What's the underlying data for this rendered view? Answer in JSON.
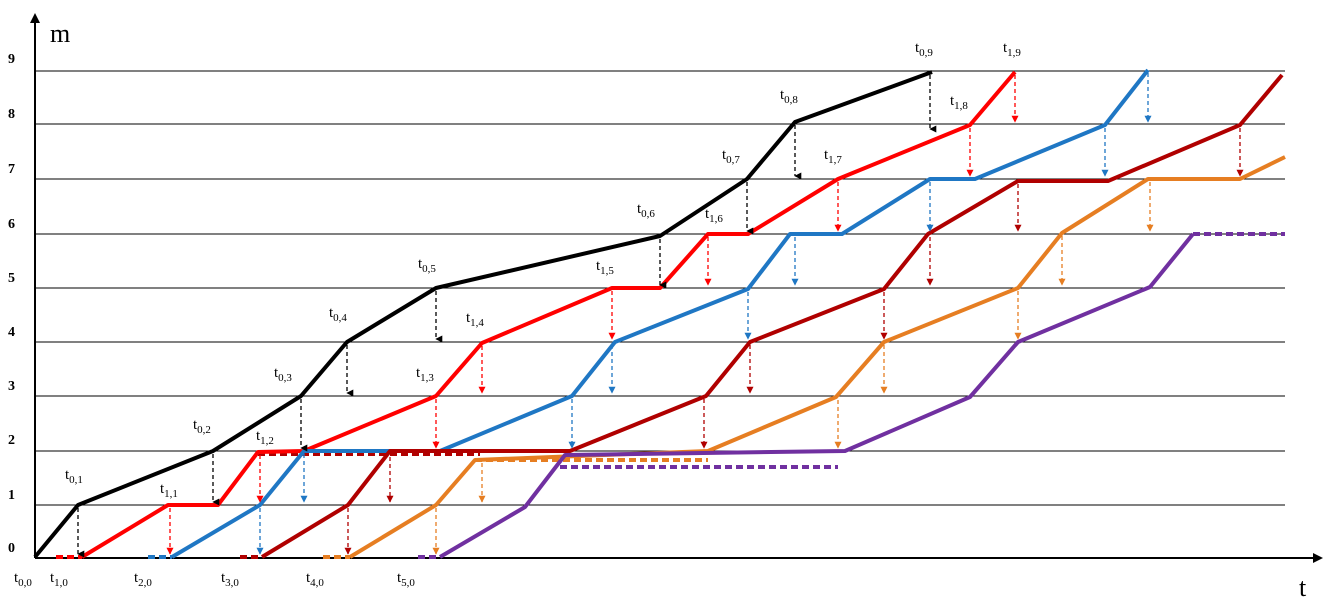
{
  "axis": {
    "y_title": "m",
    "x_title": "t",
    "y_ticks": [
      "0",
      "1",
      "2",
      "3",
      "4",
      "5",
      "6",
      "7",
      "8",
      "9"
    ]
  },
  "colors": {
    "axis": "#000000",
    "series0": "#000000",
    "series1": "#ff0000",
    "series2": "#1f77c4",
    "series3": "#b00000",
    "series4": "#e67e22",
    "series5": "#7030a0"
  },
  "time_labels": {
    "t00": {
      "b": "t",
      "s": "0,0"
    },
    "t10": {
      "b": "t",
      "s": "1,0"
    },
    "t20": {
      "b": "t",
      "s": "2,0"
    },
    "t30": {
      "b": "t",
      "s": "3,0"
    },
    "t40": {
      "b": "t",
      "s": "4,0"
    },
    "t50": {
      "b": "t",
      "s": "5,0"
    },
    "t01": {
      "b": "t",
      "s": "0,1"
    },
    "t02": {
      "b": "t",
      "s": "0,2"
    },
    "t03": {
      "b": "t",
      "s": "0,3"
    },
    "t04": {
      "b": "t",
      "s": "0,4"
    },
    "t05": {
      "b": "t",
      "s": "0,5"
    },
    "t06": {
      "b": "t",
      "s": "0,6"
    },
    "t07": {
      "b": "t",
      "s": "0,7"
    },
    "t08": {
      "b": "t",
      "s": "0,8"
    },
    "t09": {
      "b": "t",
      "s": "0,9"
    },
    "t11": {
      "b": "t",
      "s": "1,1"
    },
    "t12": {
      "b": "t",
      "s": "1,2"
    },
    "t13": {
      "b": "t",
      "s": "1,3"
    },
    "t14": {
      "b": "t",
      "s": "1,4"
    },
    "t15": {
      "b": "t",
      "s": "1,5"
    },
    "t16": {
      "b": "t",
      "s": "1,6"
    },
    "t17": {
      "b": "t",
      "s": "1,7"
    },
    "t18": {
      "b": "t",
      "s": "1,8"
    },
    "t19": {
      "b": "t",
      "s": "1,9"
    }
  }
}
